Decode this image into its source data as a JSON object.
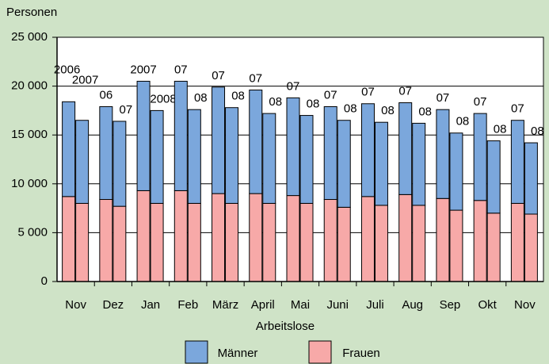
{
  "chart_data": {
    "type": "grouped_stacked_bar",
    "ylabel": "Personen",
    "legend_title": "Arbeitslose",
    "categories": [
      "Nov",
      "Dez",
      "Jan",
      "Feb",
      "März",
      "April",
      "Mai",
      "Juni",
      "Juli",
      "Aug",
      "Sep",
      "Okt",
      "Nov"
    ],
    "bar_labels": [
      [
        "2006",
        "2007"
      ],
      [
        "06",
        "07"
      ],
      [
        "2007",
        "2008"
      ],
      [
        "07",
        "08"
      ],
      [
        "07",
        "08"
      ],
      [
        "07",
        "08"
      ],
      [
        "07",
        "08"
      ],
      [
        "07",
        "08"
      ],
      [
        "07",
        "08"
      ],
      [
        "07",
        "08"
      ],
      [
        "07",
        "08"
      ],
      [
        "07",
        "08"
      ],
      [
        "07",
        "08"
      ]
    ],
    "series": [
      {
        "name": "Frauen",
        "color": "#f7a9a8",
        "values": [
          [
            8700,
            8000
          ],
          [
            8400,
            7700
          ],
          [
            9300,
            8000
          ],
          [
            9300,
            8000
          ],
          [
            9000,
            8000
          ],
          [
            9000,
            8000
          ],
          [
            8800,
            8000
          ],
          [
            8400,
            7600
          ],
          [
            8700,
            7800
          ],
          [
            8900,
            7800
          ],
          [
            8500,
            7300
          ],
          [
            8300,
            7000
          ],
          [
            8000,
            6900
          ]
        ]
      },
      {
        "name": "Männer",
        "color": "#7ba7dc",
        "values": [
          [
            9700,
            8500
          ],
          [
            9500,
            8700
          ],
          [
            11200,
            9500
          ],
          [
            11200,
            9600
          ],
          [
            10900,
            9800
          ],
          [
            10600,
            9200
          ],
          [
            10000,
            9000
          ],
          [
            9500,
            8900
          ],
          [
            9500,
            8500
          ],
          [
            9400,
            8400
          ],
          [
            9100,
            7900
          ],
          [
            8900,
            7400
          ],
          [
            8500,
            7300
          ]
        ]
      }
    ],
    "ylim": [
      0,
      25000
    ],
    "yticks": [
      0,
      {
        "value": 5000,
        "label": "5 000"
      },
      {
        "value": 10000,
        "label": "10 000"
      },
      {
        "value": 15000,
        "label": "15 000"
      },
      {
        "value": 20000,
        "label": "20 000"
      },
      {
        "value": 25000,
        "label": "25 000"
      }
    ],
    "grid": true
  }
}
